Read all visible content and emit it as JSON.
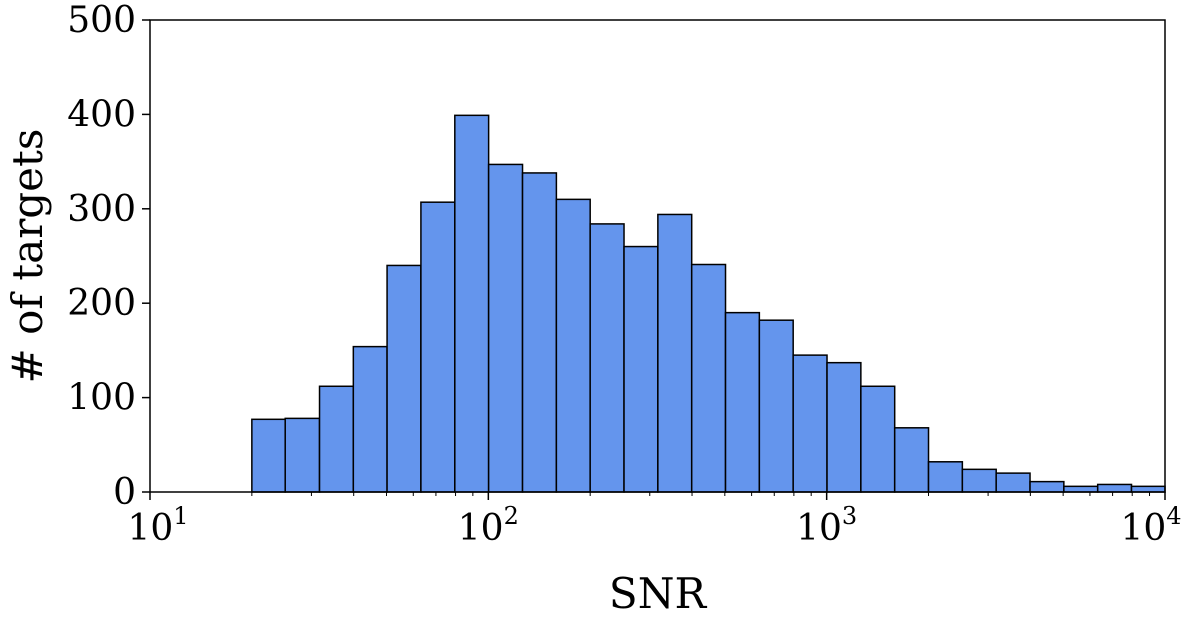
{
  "chart_data": {
    "type": "bar",
    "xscale": "log",
    "xlabel": "SNR",
    "ylabel": "# of targets",
    "xlim": [
      10,
      10000
    ],
    "ylim": [
      0,
      500
    ],
    "x_ticks": [
      {
        "value": 10,
        "base": "10",
        "exp": "1"
      },
      {
        "value": 100,
        "base": "10",
        "exp": "2"
      },
      {
        "value": 1000,
        "base": "10",
        "exp": "3"
      },
      {
        "value": 10000,
        "base": "10",
        "exp": "4"
      }
    ],
    "y_ticks": [
      0,
      100,
      200,
      300,
      400,
      500
    ],
    "bins": [
      {
        "x0": 20.0,
        "x1": 25.1,
        "value": 77
      },
      {
        "x0": 25.1,
        "x1": 31.7,
        "value": 78
      },
      {
        "x0": 31.7,
        "x1": 39.9,
        "value": 112
      },
      {
        "x0": 39.9,
        "x1": 50.2,
        "value": 154
      },
      {
        "x0": 50.2,
        "x1": 63.2,
        "value": 240
      },
      {
        "x0": 63.2,
        "x1": 79.6,
        "value": 307
      },
      {
        "x0": 79.6,
        "x1": 100.2,
        "value": 399
      },
      {
        "x0": 100.2,
        "x1": 126.2,
        "value": 347
      },
      {
        "x0": 126.2,
        "x1": 158.9,
        "value": 338
      },
      {
        "x0": 158.9,
        "x1": 200.0,
        "value": 310
      },
      {
        "x0": 200.0,
        "x1": 251.8,
        "value": 284
      },
      {
        "x0": 251.8,
        "x1": 317.0,
        "value": 260
      },
      {
        "x0": 317.0,
        "x1": 399.1,
        "value": 294
      },
      {
        "x0": 399.1,
        "x1": 502.4,
        "value": 241
      },
      {
        "x0": 502.4,
        "x1": 632.5,
        "value": 190
      },
      {
        "x0": 632.5,
        "x1": 796.2,
        "value": 182
      },
      {
        "x0": 796.2,
        "x1": 1002.4,
        "value": 145
      },
      {
        "x0": 1002.4,
        "x1": 1262.0,
        "value": 137
      },
      {
        "x0": 1262.0,
        "x1": 1588.7,
        "value": 112
      },
      {
        "x0": 1588.7,
        "x1": 2000.0,
        "value": 68
      },
      {
        "x0": 2000.0,
        "x1": 2518.0,
        "value": 32
      },
      {
        "x0": 2518.0,
        "x1": 3170.0,
        "value": 24
      },
      {
        "x0": 3170.0,
        "x1": 3991.0,
        "value": 20
      },
      {
        "x0": 3991.0,
        "x1": 5024.0,
        "value": 11
      },
      {
        "x0": 5024.0,
        "x1": 6325.0,
        "value": 6
      },
      {
        "x0": 6325.0,
        "x1": 7962.0,
        "value": 8
      },
      {
        "x0": 7962.0,
        "x1": 10000.0,
        "value": 6
      }
    ],
    "colors": {
      "bar_fill": "#6495ED",
      "bar_edge": "#000000"
    },
    "grid": false,
    "legend": "none"
  }
}
